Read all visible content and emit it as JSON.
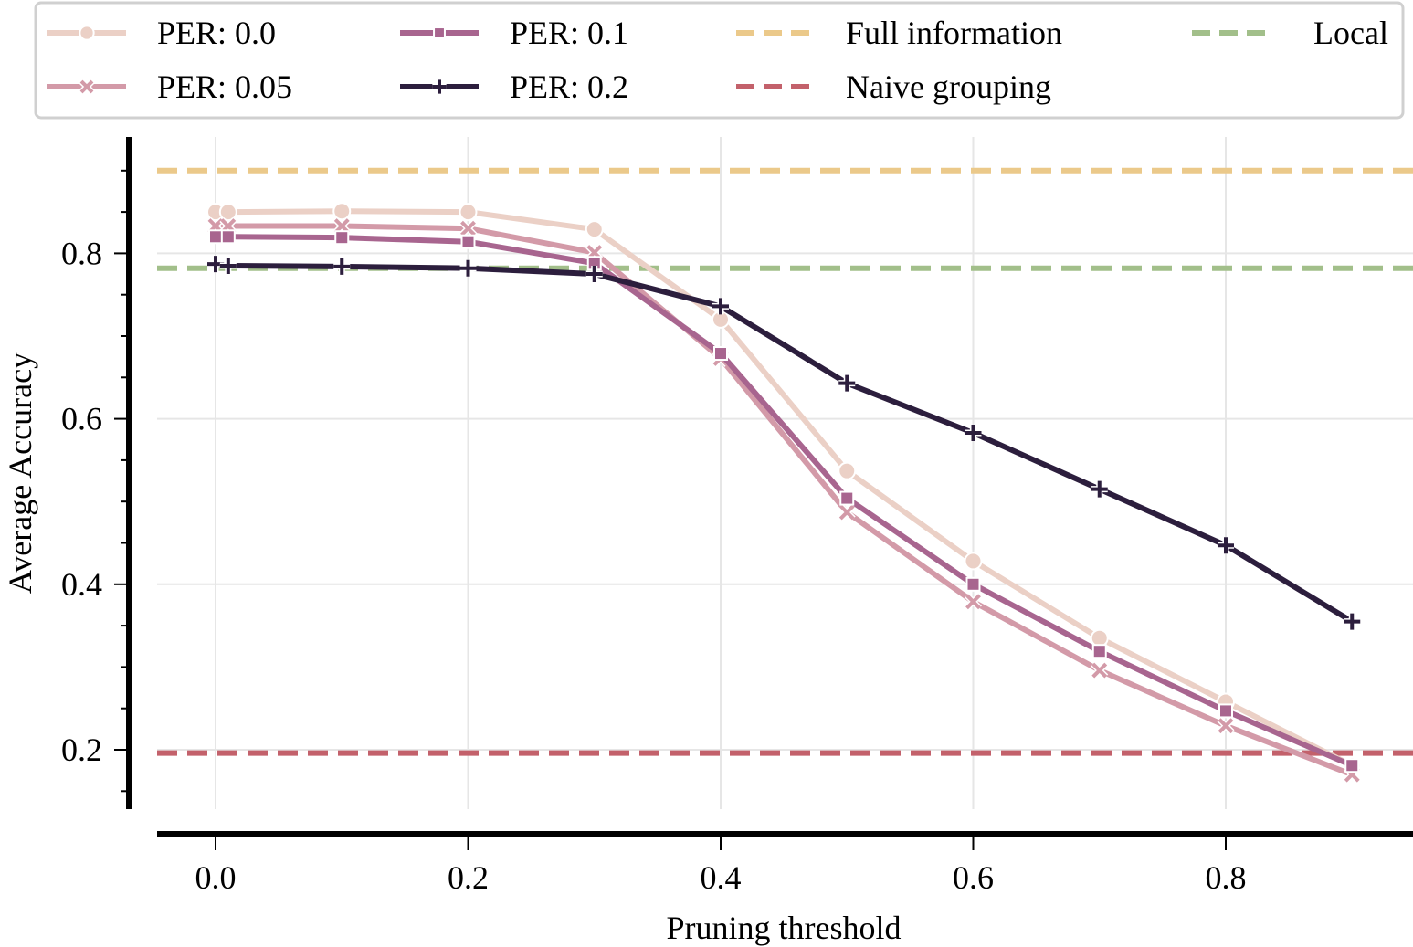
{
  "chart_data": {
    "type": "line",
    "title": "",
    "xlabel": "Pruning threshold",
    "ylabel": "Average Accuracy",
    "xlim": [
      -0.046,
      0.946
    ],
    "ylim": [
      0.125,
      0.93
    ],
    "x_ticks": [
      0.0,
      0.2,
      0.4,
      0.6,
      0.8
    ],
    "x_tick_labels": [
      "0.0",
      "0.2",
      "0.4",
      "0.6",
      "0.8"
    ],
    "y_ticks": [
      0.2,
      0.4,
      0.6,
      0.8
    ],
    "y_tick_labels": [
      "0.2",
      "0.4",
      "0.6",
      "0.8"
    ],
    "y_minor_ticks": [
      0.15,
      0.25,
      0.3,
      0.35,
      0.45,
      0.5,
      0.55,
      0.65,
      0.7,
      0.75,
      0.85,
      0.9
    ],
    "grid": true,
    "legend_position": "top",
    "x": [
      0.0,
      0.01,
      0.1,
      0.2,
      0.3,
      0.4,
      0.5,
      0.6,
      0.7,
      0.8,
      0.9
    ],
    "series": [
      {
        "name": "PER: 0.0",
        "marker": "circle",
        "color": "#ebd0c6",
        "values": [
          0.85,
          0.85,
          0.851,
          0.85,
          0.829,
          0.72,
          0.537,
          0.428,
          0.335,
          0.258,
          0.181
        ]
      },
      {
        "name": "PER: 0.05",
        "marker": "x",
        "color": "#d39aa8",
        "values": [
          0.833,
          0.833,
          0.833,
          0.83,
          0.801,
          0.673,
          0.487,
          0.379,
          0.296,
          0.229,
          0.17
        ]
      },
      {
        "name": "PER: 0.1",
        "marker": "square",
        "color": "#a8658f",
        "values": [
          0.82,
          0.82,
          0.819,
          0.814,
          0.788,
          0.679,
          0.504,
          0.4,
          0.319,
          0.247,
          0.181
        ]
      },
      {
        "name": "PER: 0.2",
        "marker": "plus",
        "color": "#2c1e3d",
        "values": [
          0.787,
          0.785,
          0.784,
          0.782,
          0.775,
          0.736,
          0.643,
          0.583,
          0.515,
          0.447,
          0.355
        ]
      }
    ],
    "reference_lines": [
      {
        "name": "Full information",
        "value": 0.9,
        "color": "#ebc98a",
        "style": "dashed"
      },
      {
        "name": "Local",
        "value": 0.782,
        "color": "#a2bf8a",
        "style": "dashed"
      },
      {
        "name": "Naive grouping",
        "value": 0.196,
        "color": "#c3616b",
        "style": "dashed"
      }
    ],
    "legend": {
      "columns": [
        [
          "PER: 0.0",
          "PER: 0.05"
        ],
        [
          "PER: 0.1",
          "PER: 0.2"
        ],
        [
          "Full information",
          "Naive grouping"
        ],
        [
          "Local"
        ]
      ]
    }
  }
}
